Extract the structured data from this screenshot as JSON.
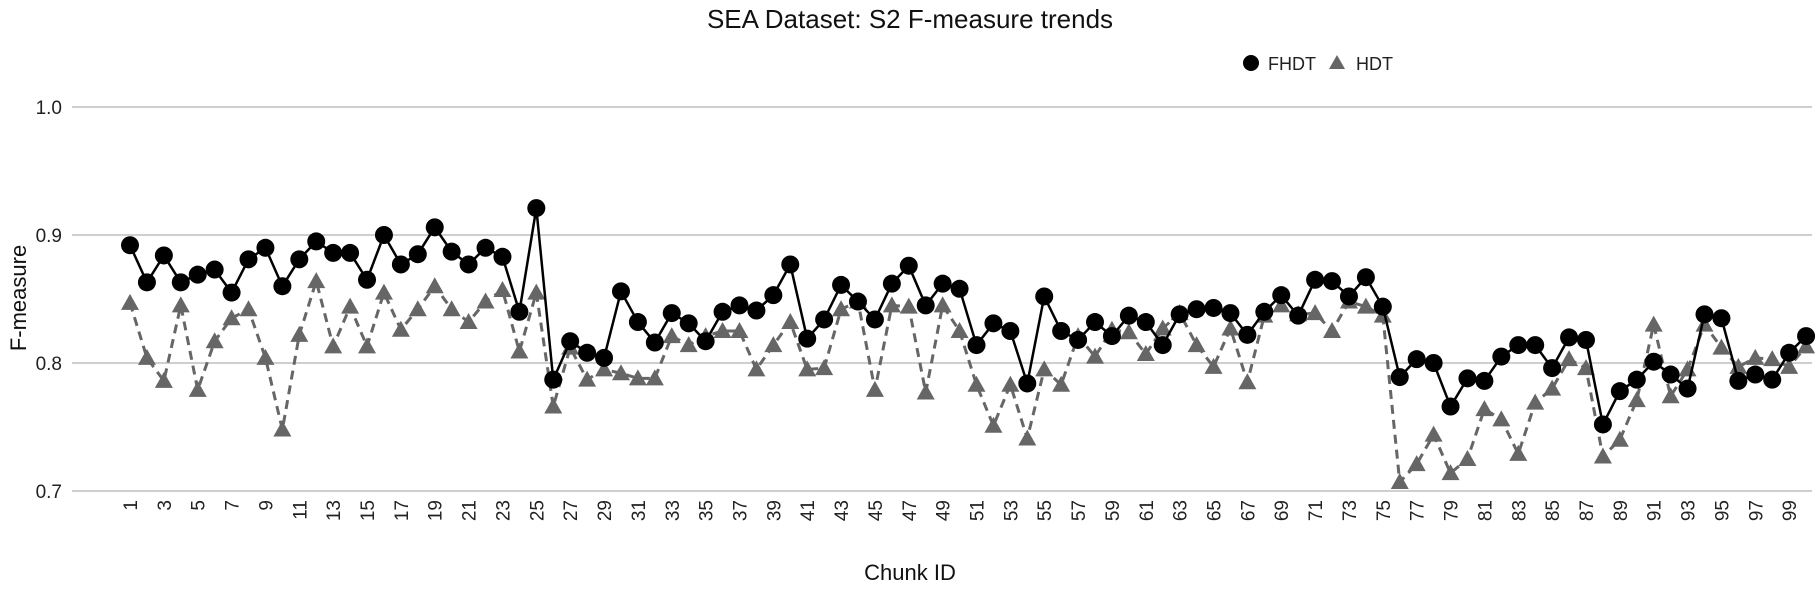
{
  "chart_data": {
    "type": "line",
    "title": "SEA Dataset: S2 F-measure trends",
    "xlabel": "Chunk ID",
    "ylabel": "F-measure",
    "ylim": [
      0.7,
      1.0
    ],
    "yticks": [
      "0.7",
      "0.8",
      "0.9",
      "1.0"
    ],
    "ytick_values": [
      0.7,
      0.8,
      0.9,
      1.0
    ],
    "xlim": [
      1,
      100
    ],
    "xtick_step": 2,
    "grid": true,
    "legend_position": "top-right",
    "x": [
      1,
      2,
      3,
      4,
      5,
      6,
      7,
      8,
      9,
      10,
      11,
      12,
      13,
      14,
      15,
      16,
      17,
      18,
      19,
      20,
      21,
      22,
      23,
      24,
      25,
      26,
      27,
      28,
      29,
      30,
      31,
      32,
      33,
      34,
      35,
      36,
      37,
      38,
      39,
      40,
      41,
      42,
      43,
      44,
      45,
      46,
      47,
      48,
      49,
      50,
      51,
      52,
      53,
      54,
      55,
      56,
      57,
      58,
      59,
      60,
      61,
      62,
      63,
      64,
      65,
      66,
      67,
      68,
      69,
      70,
      71,
      72,
      73,
      74,
      75,
      76,
      77,
      78,
      79,
      80,
      81,
      82,
      83,
      84,
      85,
      86,
      87,
      88,
      89,
      90,
      91,
      92,
      93,
      94,
      95,
      96,
      97,
      98,
      99,
      100
    ],
    "series": [
      {
        "name": "FHDT",
        "marker": "circle",
        "line": "solid",
        "color": "#000000",
        "values": [
          0.892,
          0.863,
          0.884,
          0.863,
          0.869,
          0.873,
          0.855,
          0.881,
          0.89,
          0.86,
          0.881,
          0.895,
          0.886,
          0.886,
          0.865,
          0.9,
          0.877,
          0.885,
          0.906,
          0.887,
          0.877,
          0.89,
          0.883,
          0.84,
          0.921,
          0.787,
          0.817,
          0.808,
          0.804,
          0.856,
          0.832,
          0.816,
          0.839,
          0.831,
          0.817,
          0.84,
          0.845,
          0.841,
          0.853,
          0.877,
          0.819,
          0.834,
          0.861,
          0.848,
          0.834,
          0.862,
          0.876,
          0.845,
          0.862,
          0.858,
          0.814,
          0.831,
          0.825,
          0.784,
          0.852,
          0.825,
          0.818,
          0.832,
          0.821,
          0.837,
          0.832,
          0.814,
          0.838,
          0.842,
          0.843,
          0.839,
          0.822,
          0.84,
          0.853,
          0.837,
          0.865,
          0.864,
          0.852,
          0.867,
          0.844,
          0.789,
          0.803,
          0.8,
          0.766,
          0.788,
          0.786,
          0.805,
          0.814,
          0.814,
          0.796,
          0.82,
          0.818,
          0.752,
          0.778,
          0.787,
          0.801,
          0.791,
          0.78,
          0.838,
          0.835,
          0.786,
          0.791,
          0.787,
          0.808,
          0.821
        ]
      },
      {
        "name": "HDT",
        "marker": "triangle",
        "line": "dashed",
        "color": "#666666",
        "values": [
          0.847,
          0.804,
          0.786,
          0.845,
          0.779,
          0.817,
          0.835,
          0.842,
          0.804,
          0.748,
          0.822,
          0.864,
          0.813,
          0.844,
          0.813,
          0.855,
          0.826,
          0.842,
          0.86,
          0.842,
          0.832,
          0.848,
          0.857,
          0.809,
          0.855,
          0.766,
          0.812,
          0.787,
          0.795,
          0.792,
          0.788,
          0.788,
          0.821,
          0.814,
          0.821,
          0.825,
          0.825,
          0.795,
          0.814,
          0.832,
          0.795,
          0.796,
          0.842,
          0.848,
          0.779,
          0.845,
          0.844,
          0.777,
          0.845,
          0.825,
          0.783,
          0.751,
          0.783,
          0.741,
          0.795,
          0.783,
          0.821,
          0.805,
          0.826,
          0.824,
          0.807,
          0.827,
          0.839,
          0.814,
          0.797,
          0.827,
          0.785,
          0.837,
          0.845,
          0.838,
          0.839,
          0.825,
          0.848,
          0.844,
          0.837,
          0.707,
          0.721,
          0.744,
          0.714,
          0.725,
          0.764,
          0.756,
          0.729,
          0.769,
          0.78,
          0.803,
          0.796,
          0.727,
          0.74,
          0.771,
          0.83,
          0.774,
          0.795,
          0.83,
          0.812,
          0.797,
          0.804,
          0.803,
          0.797,
          0.813
        ]
      }
    ]
  }
}
